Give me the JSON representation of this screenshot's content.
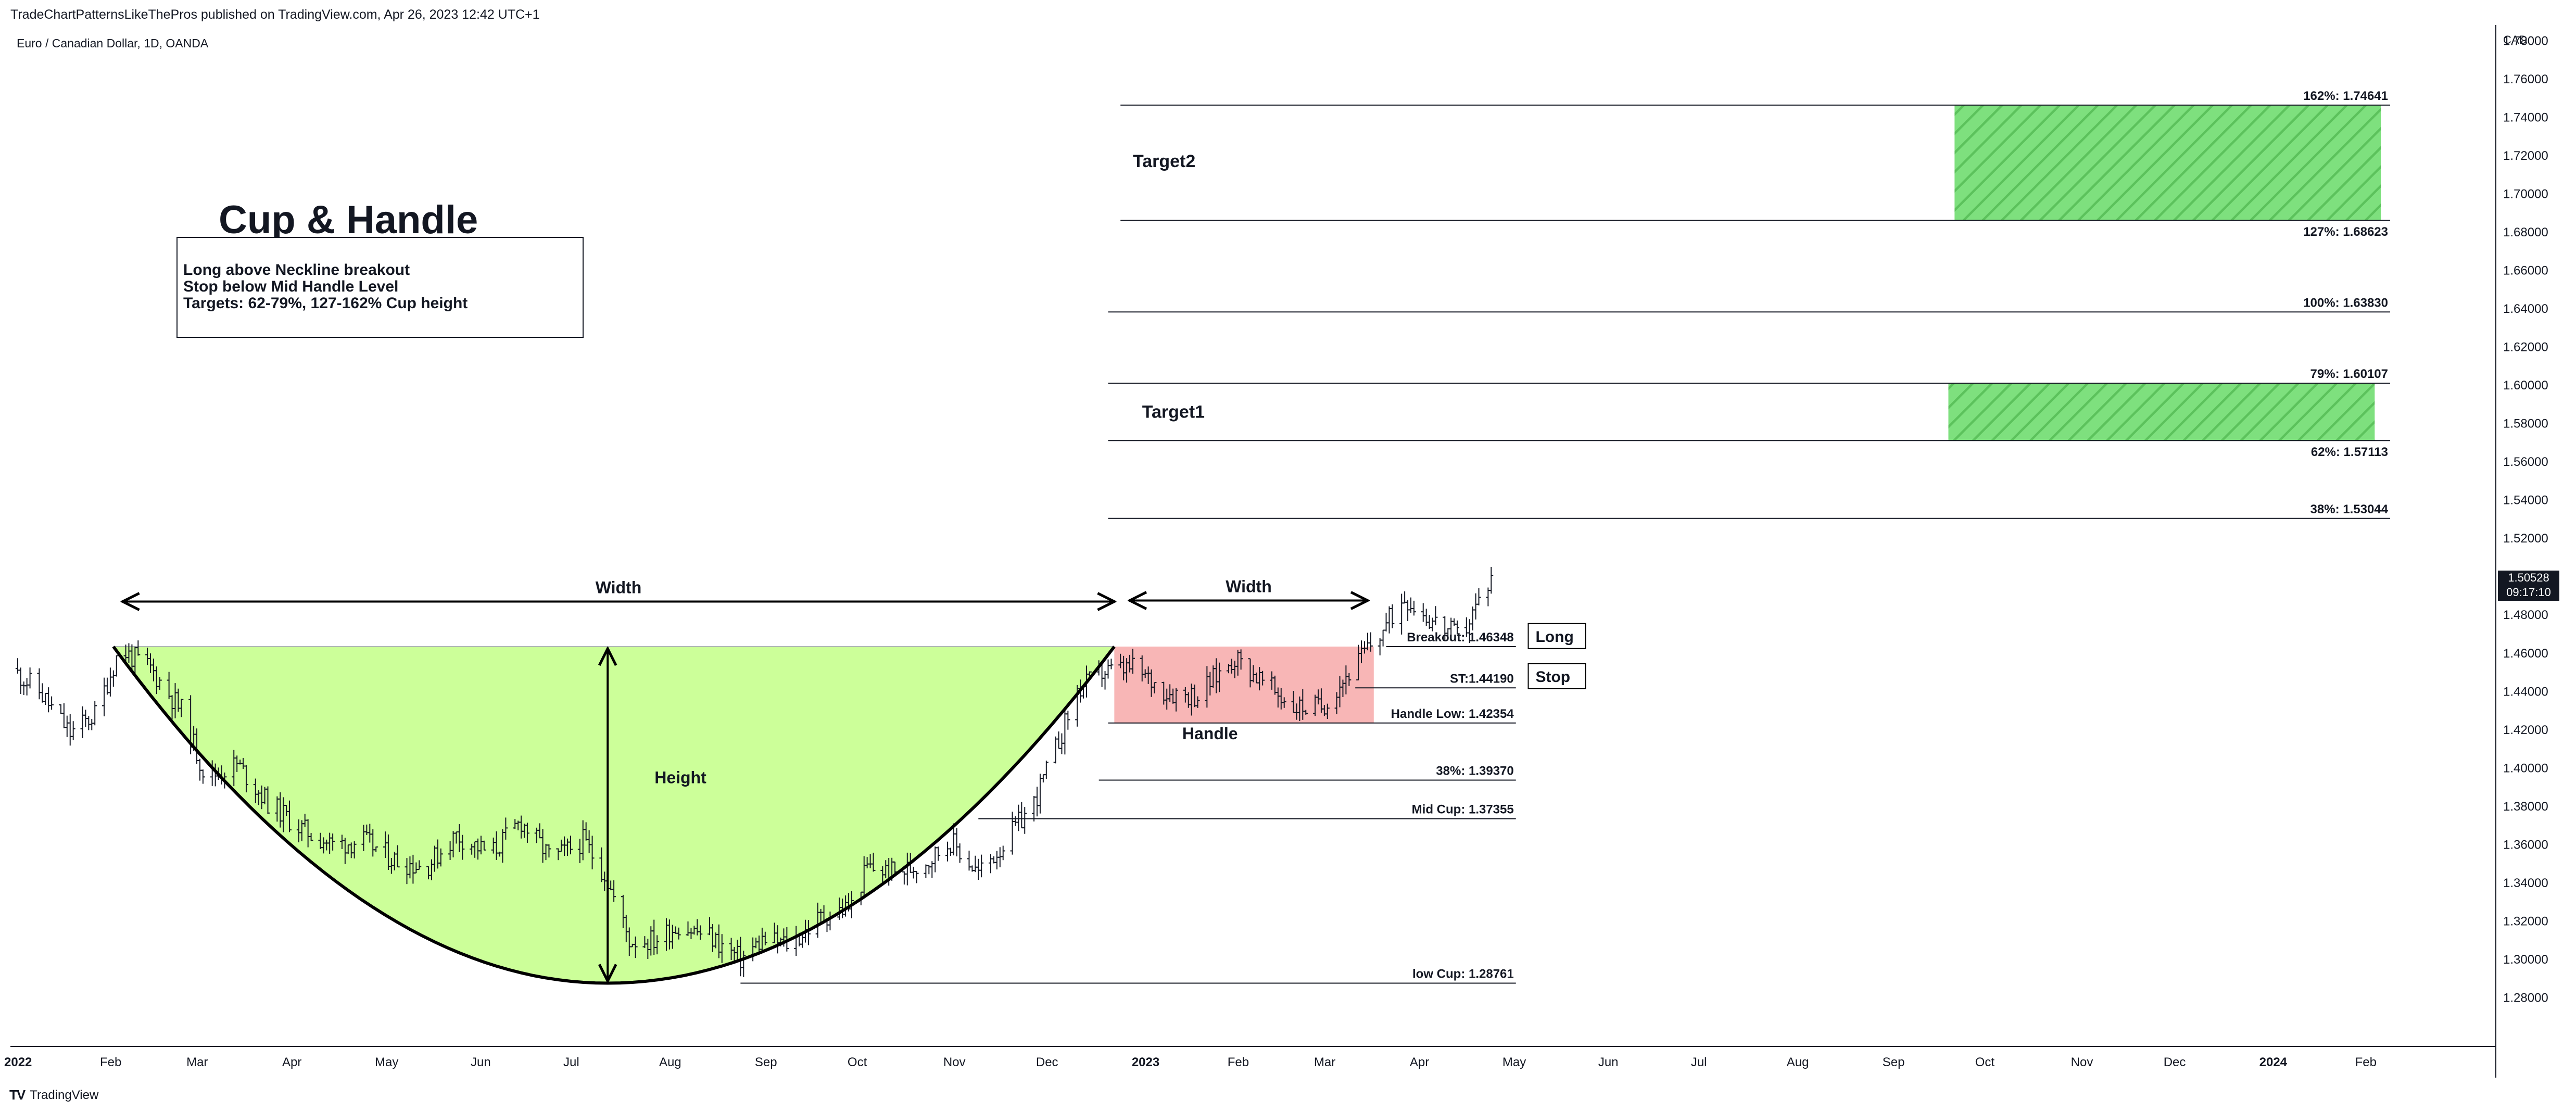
{
  "header": {
    "published_line": "TradeChartPatternsLikeThePros published on TradingView.com, Apr 26, 2023 12:42 UTC+1",
    "symbol_line": "Euro / Canadian Dollar, 1D, OANDA"
  },
  "footer": {
    "logo_mark": "TV",
    "logo_text": "TradingView"
  },
  "price_badge": {
    "price": "1.50528",
    "countdown": "09:17:10"
  },
  "colors": {
    "cup_fill": "#ccff99",
    "handle_fill": "#f8b6b6",
    "target_fill": "#7ee07e",
    "target_hatch": "#5cc25c",
    "candle": "#131722",
    "badge_bg": "#131722"
  },
  "chart_data": {
    "type": "bar",
    "subtype": "ohlc",
    "currency_label": "CAD",
    "y_axis": {
      "range": [
        1.26,
        1.785
      ],
      "ticks": [
        "1.28000",
        "1.30000",
        "1.32000",
        "1.34000",
        "1.36000",
        "1.38000",
        "1.40000",
        "1.42000",
        "1.44000",
        "1.46000",
        "1.48000",
        "1.50000",
        "1.52000",
        "1.54000",
        "1.56000",
        "1.58000",
        "1.60000",
        "1.62000",
        "1.64000",
        "1.66000",
        "1.68000",
        "1.70000",
        "1.72000",
        "1.74000",
        "1.76000",
        "1.78000"
      ]
    },
    "x_axis": {
      "range": [
        "2022-01-01",
        "2024-02-25"
      ],
      "labels": [
        {
          "text": "2022",
          "date": "2022-01-01",
          "bold": true
        },
        {
          "text": "Feb",
          "date": "2022-02-01"
        },
        {
          "text": "Mar",
          "date": "2022-03-01"
        },
        {
          "text": "Apr",
          "date": "2022-04-01"
        },
        {
          "text": "May",
          "date": "2022-05-01"
        },
        {
          "text": "Jun",
          "date": "2022-06-01"
        },
        {
          "text": "Jul",
          "date": "2022-07-01"
        },
        {
          "text": "Aug",
          "date": "2022-08-01"
        },
        {
          "text": "Sep",
          "date": "2022-09-01"
        },
        {
          "text": "Oct",
          "date": "2022-10-01"
        },
        {
          "text": "Nov",
          "date": "2022-11-01"
        },
        {
          "text": "Dec",
          "date": "2022-12-01"
        },
        {
          "text": "2023",
          "date": "2023-01-01",
          "bold": true
        },
        {
          "text": "Feb",
          "date": "2023-02-01"
        },
        {
          "text": "Mar",
          "date": "2023-03-01"
        },
        {
          "text": "Apr",
          "date": "2023-04-01"
        },
        {
          "text": "May",
          "date": "2023-05-01"
        },
        {
          "text": "Jun",
          "date": "2023-06-01"
        },
        {
          "text": "Jul",
          "date": "2023-07-01"
        },
        {
          "text": "Aug",
          "date": "2023-08-01"
        },
        {
          "text": "Sep",
          "date": "2023-09-01"
        },
        {
          "text": "Oct",
          "date": "2023-10-01"
        },
        {
          "text": "Nov",
          "date": "2023-11-01"
        },
        {
          "text": "Dec",
          "date": "2023-12-01"
        },
        {
          "text": "2024",
          "date": "2024-01-01",
          "bold": true
        },
        {
          "text": "Feb",
          "date": "2024-02-01"
        }
      ]
    },
    "price_anchors": [
      [
        "2022-01-01",
        1.452
      ],
      [
        "2022-01-10",
        1.44
      ],
      [
        "2022-01-20",
        1.418
      ],
      [
        "2022-01-28",
        1.428
      ],
      [
        "2022-02-05",
        1.462
      ],
      [
        "2022-02-15",
        1.452
      ],
      [
        "2022-02-25",
        1.43
      ],
      [
        "2022-03-05",
        1.395
      ],
      [
        "2022-03-15",
        1.402
      ],
      [
        "2022-03-25",
        1.382
      ],
      [
        "2022-04-05",
        1.368
      ],
      [
        "2022-04-15",
        1.36
      ],
      [
        "2022-04-25",
        1.362
      ],
      [
        "2022-05-05",
        1.352
      ],
      [
        "2022-05-15",
        1.348
      ],
      [
        "2022-05-25",
        1.365
      ],
      [
        "2022-06-05",
        1.355
      ],
      [
        "2022-06-15",
        1.372
      ],
      [
        "2022-06-25",
        1.352
      ],
      [
        "2022-07-05",
        1.362
      ],
      [
        "2022-07-12",
        1.345
      ],
      [
        "2022-07-20",
        1.31
      ],
      [
        "2022-07-28",
        1.31
      ],
      [
        "2022-08-05",
        1.318
      ],
      [
        "2022-08-15",
        1.312
      ],
      [
        "2022-08-25",
        1.3
      ],
      [
        "2022-09-01",
        1.31
      ],
      [
        "2022-09-10",
        1.308
      ],
      [
        "2022-09-20",
        1.322
      ],
      [
        "2022-09-30",
        1.328
      ],
      [
        "2022-10-05",
        1.348
      ],
      [
        "2022-10-15",
        1.345
      ],
      [
        "2022-10-25",
        1.352
      ],
      [
        "2022-11-01",
        1.362
      ],
      [
        "2022-11-10",
        1.345
      ],
      [
        "2022-11-18",
        1.36
      ],
      [
        "2022-11-28",
        1.382
      ],
      [
        "2022-12-05",
        1.41
      ],
      [
        "2022-12-12",
        1.44
      ],
      [
        "2022-12-20",
        1.45
      ],
      [
        "2022-12-30",
        1.452
      ],
      [
        "2023-01-10",
        1.44
      ],
      [
        "2023-01-20",
        1.438
      ],
      [
        "2023-02-01",
        1.458
      ],
      [
        "2023-02-10",
        1.445
      ],
      [
        "2023-02-20",
        1.432
      ],
      [
        "2023-03-01",
        1.432
      ],
      [
        "2023-03-10",
        1.45
      ],
      [
        "2023-03-20",
        1.47
      ],
      [
        "2023-03-28",
        1.49
      ],
      [
        "2023-04-05",
        1.478
      ],
      [
        "2023-04-15",
        1.468
      ],
      [
        "2023-04-25",
        1.5
      ]
    ],
    "levels": [
      {
        "label": "162%: 1.74641",
        "price": 1.74641
      },
      {
        "label": "127%: 1.68623",
        "price": 1.68623
      },
      {
        "label": "100%: 1.63830",
        "price": 1.6383
      },
      {
        "label": "79%: 1.60107",
        "price": 1.60107
      },
      {
        "label": "62%: 1.57113",
        "price": 1.57113
      },
      {
        "label": "38%: 1.53044",
        "price": 1.53044
      },
      {
        "label": "Breakout: 1.46348",
        "price": 1.46348
      },
      {
        "label": "ST:1.44190",
        "price": 1.4419
      },
      {
        "label": "Handle Low: 1.42354",
        "price": 1.42354
      },
      {
        "label": "38%: 1.39370",
        "price": 1.3937
      },
      {
        "label": "Mid Cup: 1.37355",
        "price": 1.37355
      },
      {
        "label": "low Cup: 1.28761",
        "price": 1.28761
      }
    ],
    "annotations": {
      "title": "Cup & Handle",
      "box_lines": [
        "Long above Neckline breakout",
        "Stop below Mid Handle Level",
        "Targets: 62-79%, 127-162% Cup height"
      ],
      "cup_width_label": "Width",
      "handle_width_label": "Width",
      "height_label": "Height",
      "handle_label": "Handle",
      "long_label": "Long",
      "stop_label": "Stop",
      "target1_label": "Target1",
      "target2_label": "Target2"
    },
    "cup": {
      "start": "2022-02-03",
      "end": "2022-12-24",
      "bottom_date": "2022-07-13",
      "top": 1.46348,
      "bottom": 1.28761
    },
    "handle": {
      "start": "2022-12-24",
      "end": "2023-03-18",
      "top": 1.46348,
      "bottom": 1.42354
    },
    "target_zones": [
      {
        "name": "Target1",
        "start": "2023-09-20",
        "end": "2024-02-05",
        "low": 1.57113,
        "high": 1.60107
      },
      {
        "name": "Target2",
        "start": "2023-09-22",
        "end": "2024-02-07",
        "low": 1.68623,
        "high": 1.74641
      }
    ],
    "grid": false,
    "legend": "none"
  }
}
